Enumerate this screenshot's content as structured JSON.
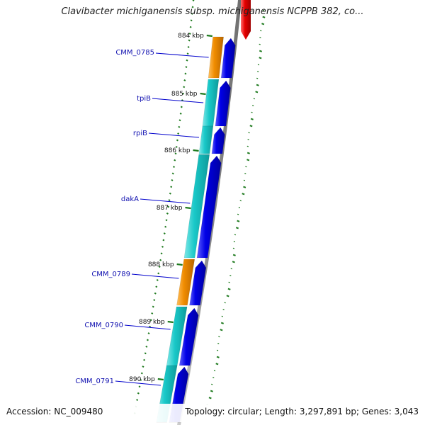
{
  "title": "Clavibacter michiganensis subsp. michiganensis NCPPB 382, co...",
  "footer": {
    "accession": "Accession: NC_009480",
    "topology": "Topology: circular; Length: 3,297,891 bp; Genes: 3,043"
  },
  "colors": {
    "backbone": "#8c8c8c",
    "forward_gene": "#0000e6",
    "cds_cyan": "#19c8c8",
    "cds_orange": "#f08c00",
    "reverse_feature": "#e60000",
    "gc_ticks": "#1e7a1e",
    "label_line": "#0000cc"
  },
  "ruler": [
    {
      "label": "884 kbp"
    },
    {
      "label": "885 kbp"
    },
    {
      "label": "886 kbp"
    },
    {
      "label": "887 kbp"
    },
    {
      "label": "888 kbp"
    },
    {
      "label": "889 kbp"
    },
    {
      "label": "890 kbp"
    }
  ],
  "genes": [
    {
      "name": "CMM_0785",
      "type": "orange"
    },
    {
      "name": "tpiB",
      "type": "cyan"
    },
    {
      "name": "rpiB",
      "type": "cyan"
    },
    {
      "name": "dakA",
      "type": "cyan"
    },
    {
      "name": "CMM_0789",
      "type": "orange"
    },
    {
      "name": "CMM_0790",
      "type": "cyan"
    },
    {
      "name": "CMM_0791",
      "type": "cyan"
    }
  ]
}
